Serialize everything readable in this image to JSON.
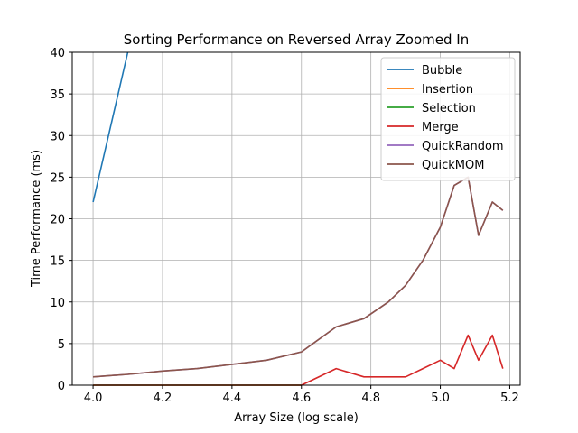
{
  "chart_data": {
    "type": "line",
    "title": "Sorting Performance on Reversed Array Zoomed In",
    "xlabel": "Array Size (log scale)",
    "ylabel": "Time Performance (ms)",
    "xlim": [
      3.94,
      5.23
    ],
    "ylim": [
      0,
      40
    ],
    "xticks": [
      "4.0",
      "4.2",
      "4.4",
      "4.6",
      "4.8",
      "5.0",
      "5.2"
    ],
    "yticks": [
      "0",
      "5",
      "10",
      "15",
      "20",
      "25",
      "30",
      "35",
      "40"
    ],
    "grid": true,
    "legend_position": "upper right",
    "series": [
      {
        "name": "Bubble",
        "color": "#1f77b4",
        "x": [
          4.0,
          4.1
        ],
        "y": [
          22,
          40
        ]
      },
      {
        "name": "Insertion",
        "color": "#ff7f0e",
        "x": [
          4.0,
          4.3,
          4.6
        ],
        "y": [
          0,
          0,
          0
        ]
      },
      {
        "name": "Selection",
        "color": "#2ca02c",
        "x": [
          4.0,
          4.3,
          4.6
        ],
        "y": [
          0,
          0,
          0
        ]
      },
      {
        "name": "Merge",
        "color": "#d62728",
        "x": [
          4.0,
          4.1,
          4.2,
          4.3,
          4.4,
          4.5,
          4.6,
          4.7,
          4.78,
          4.85,
          4.9,
          4.95,
          5.0,
          5.04,
          5.08,
          5.11,
          5.15,
          5.18
        ],
        "y": [
          0,
          0,
          0,
          0,
          0,
          0,
          0,
          2,
          1,
          1,
          1,
          2,
          3,
          2,
          6,
          3,
          6,
          2
        ]
      },
      {
        "name": "QuickRandom",
        "color": "#9467bd",
        "x": [
          4.0,
          4.1,
          4.2,
          4.3,
          4.4,
          4.5,
          4.6,
          4.7,
          4.78,
          4.85,
          4.9,
          4.95,
          5.0,
          5.04,
          5.08,
          5.11,
          5.15,
          5.18
        ],
        "y": [
          1,
          1.3,
          1.7,
          2,
          2.5,
          3,
          4,
          7,
          8,
          10,
          12,
          15,
          19,
          24,
          25,
          18,
          22,
          21
        ]
      },
      {
        "name": "QuickMOM",
        "color": "#8c564b",
        "x": [
          4.0,
          4.1,
          4.2,
          4.3,
          4.4,
          4.5,
          4.6,
          4.7,
          4.78,
          4.85,
          4.9,
          4.95,
          5.0,
          5.04,
          5.08,
          5.11,
          5.15,
          5.18
        ],
        "y": [
          1,
          1.3,
          1.7,
          2,
          2.5,
          3,
          4,
          7,
          8,
          10,
          12,
          15,
          19,
          24,
          25,
          18,
          22,
          21
        ]
      }
    ]
  }
}
